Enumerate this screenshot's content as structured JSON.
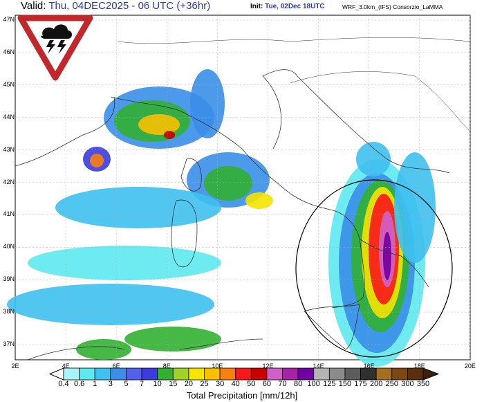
{
  "header": {
    "valid_label": "Valid:",
    "valid_value": "Thu, 04DEC2025 - 06 UTC (+36hr)",
    "init_label": "Init:",
    "init_value": "Tue, 02Dec 18UTC",
    "model": "WRF_3.0km_(IFS)  Consorzio_LaMMA"
  },
  "warning_icon": "thunderstorm-warning-icon",
  "map": {
    "lat_labels": [
      "47N",
      "46N",
      "45N",
      "44N",
      "43N",
      "42N",
      "41N",
      "40N",
      "39N",
      "38N",
      "37N"
    ],
    "lon_labels": [
      "2E",
      "4E",
      "6E",
      "8E",
      "10E",
      "12E",
      "14E",
      "16E",
      "18E",
      "20E"
    ],
    "highlight": "circle around Calabria / Ionian sea"
  },
  "colorbar": {
    "title": "Total Precipitation [mm/12h]",
    "labels": [
      "0.4",
      "0.6",
      "1",
      "3",
      "5",
      "7",
      "10",
      "15",
      "20",
      "25",
      "30",
      "40",
      "50",
      "60",
      "70",
      "80",
      "100",
      "125",
      "150",
      "175",
      "200",
      "250",
      "300",
      "350"
    ],
    "colors": [
      "#a8f4f8",
      "#5ee8f0",
      "#3ec0f0",
      "#3a8ee8",
      "#5260ea",
      "#3a3ce0",
      "#32b032",
      "#a2d22a",
      "#f4e400",
      "#f8c000",
      "#f88010",
      "#f81818",
      "#c80000",
      "#d060c8",
      "#a822a8",
      "#7000a0",
      "#b4b4b4",
      "#8c8c8c",
      "#5c5c5c",
      "#303030",
      "#a47020",
      "#7a4a12",
      "#5a300a"
    ],
    "over_color": "#3c2008",
    "under_color": "#ffffff"
  }
}
